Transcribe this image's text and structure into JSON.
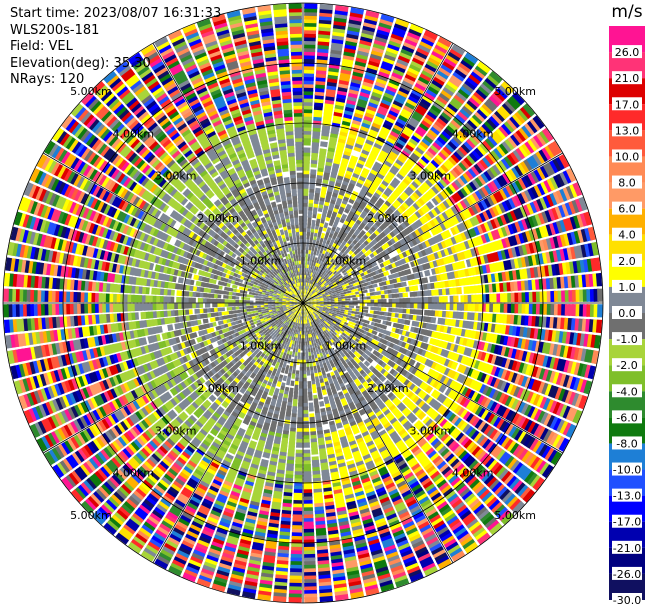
{
  "header": {
    "start_time": "Start time: 2023/08/07 16:31:33",
    "site": "WLS200s-181",
    "field": "Field: VEL",
    "elevation": "Elevation(deg): 35.30",
    "nrays": "NRays: 120"
  },
  "colorbar": {
    "unit": "m/s",
    "ticks": [
      "26.0",
      "21.0",
      "17.0",
      "13.0",
      "10.0",
      "8.0",
      "6.0",
      "4.0",
      "2.0",
      "1.0",
      "0.0",
      "-1.0",
      "-2.0",
      "-4.0",
      "-6.0",
      "-8.0",
      "-10.0",
      "-13.0",
      "-17.0",
      "-21.0",
      "-26.0",
      "-30.0"
    ],
    "colors": [
      "#ff1493",
      "#ff3377",
      "#dd0000",
      "#ff2a2a",
      "#ff5a3c",
      "#ff8a55",
      "#ff9a66",
      "#ffb000",
      "#ffe000",
      "#ffff00",
      "#7f8896",
      "#6f6f6f",
      "#a8d43a",
      "#7fbf2a",
      "#2e8b2e",
      "#0f7a0f",
      "#1e7fd6",
      "#2050ff",
      "#0000ff",
      "#0000b0",
      "#000080",
      "#101060"
    ]
  },
  "chart_data": {
    "type": "heatmap",
    "projection": "polar (PPI)",
    "field": "VEL",
    "nrays": 120,
    "range_rings_km": [
      1.0,
      2.0,
      3.0,
      4.0,
      5.0
    ],
    "ring_labels": [
      "1.00km",
      "2.00km",
      "3.00km",
      "4.00km",
      "5.00km"
    ],
    "max_range_km": 5.0,
    "colorbar_range": [
      -30.0,
      26.0
    ],
    "pattern": "near-zero velocities (grey) within ~2.5 km with green (-2 to -4 m/s) and yellow (2 to 4 m/s) bands; noisy multicolour returns beyond ~3 km"
  }
}
